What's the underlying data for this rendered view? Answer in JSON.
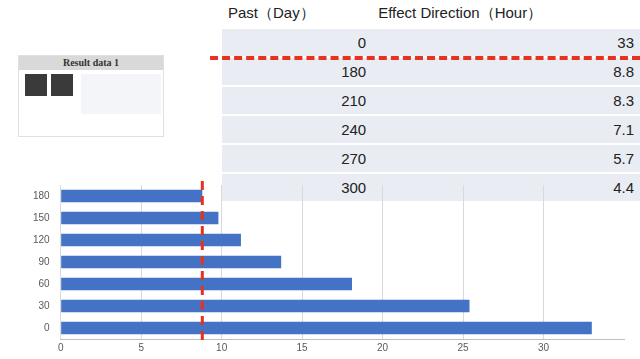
{
  "thumbnail": {
    "title": "Result data 1"
  },
  "table": {
    "header": [
      "Past（Day）",
      "Effect Direction（Hour）"
    ],
    "rows": [
      [
        0,
        33
      ],
      [
        180,
        8.8
      ],
      [
        210,
        8.3
      ],
      [
        240,
        7.1
      ],
      [
        270,
        5.7
      ],
      [
        300,
        4.4
      ]
    ]
  },
  "chart_data": {
    "type": "bar",
    "orientation": "horizontal",
    "categories": [
      "0",
      "30",
      "60",
      "90",
      "120",
      "150",
      "180"
    ],
    "values": [
      33,
      25.4,
      18.1,
      13.7,
      11.2,
      9.8,
      8.8
    ],
    "color": "#4472c4",
    "xlim": [
      0,
      35
    ],
    "xticks": [
      0,
      5,
      10,
      15,
      20,
      25,
      30
    ],
    "grid": true,
    "reference_line": {
      "value": 8.8,
      "color": "#e8321e"
    }
  }
}
